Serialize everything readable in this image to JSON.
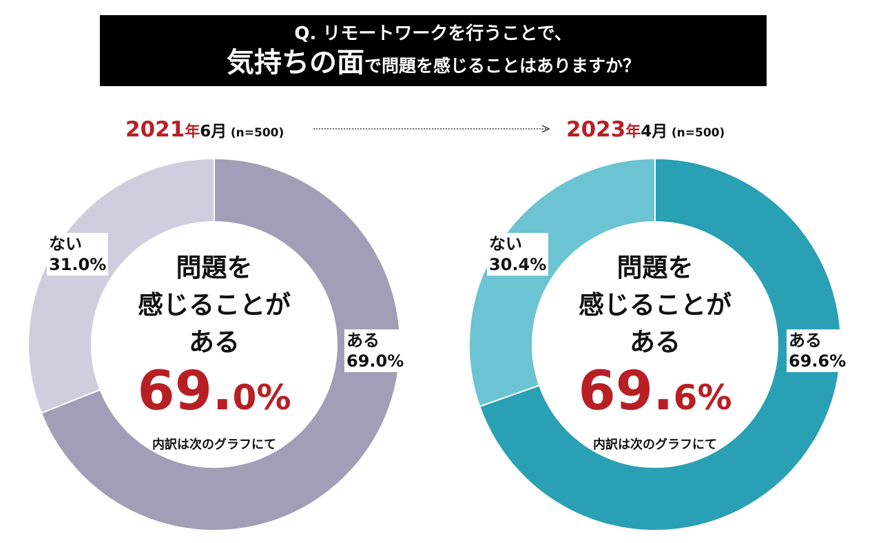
{
  "banner": {
    "line1": "Q. リモートワークを行うことで、",
    "line2_emphasis": "気持ちの面",
    "line2_rest": "で問題を感じることはありますか？"
  },
  "arrow_icon": "dotted-arrow-right",
  "charts": [
    {
      "year": "2021",
      "year_suffix": "年",
      "month": "6月",
      "n": "(n=500)",
      "center": {
        "line1": "問題を",
        "line2": "感じることが",
        "line3": "ある",
        "pct_int": "69.",
        "pct_dec": "0",
        "pct_sign": "%",
        "note": "内訳は次のグラフにて"
      },
      "label_aru": "ある",
      "value_aru": "69.0%",
      "label_nai": "ない",
      "value_nai": "31.0%",
      "colors": {
        "aru": "#a19fb7",
        "nai": "#cfcedf"
      }
    },
    {
      "year": "2023",
      "year_suffix": "年",
      "month": "4月",
      "n": "(n=500)",
      "center": {
        "line1": "問題を",
        "line2": "感じることが",
        "line3": "ある",
        "pct_int": "69.",
        "pct_dec": "6",
        "pct_sign": "%",
        "note": "内訳は次のグラフにて"
      },
      "label_aru": "ある",
      "value_aru": "69.6%",
      "label_nai": "ない",
      "value_nai": "30.4%",
      "colors": {
        "aru": "#2aa0b4",
        "nai": "#6cc3d2"
      }
    }
  ],
  "chart_data": [
    {
      "type": "pie",
      "title": "2021年6月 (n=500)",
      "categories": [
        "ある",
        "ない"
      ],
      "values": [
        69.0,
        31.0
      ],
      "unit": "%"
    },
    {
      "type": "pie",
      "title": "2023年4月 (n=500)",
      "categories": [
        "ある",
        "ない"
      ],
      "values": [
        69.6,
        30.4
      ],
      "unit": "%"
    }
  ]
}
